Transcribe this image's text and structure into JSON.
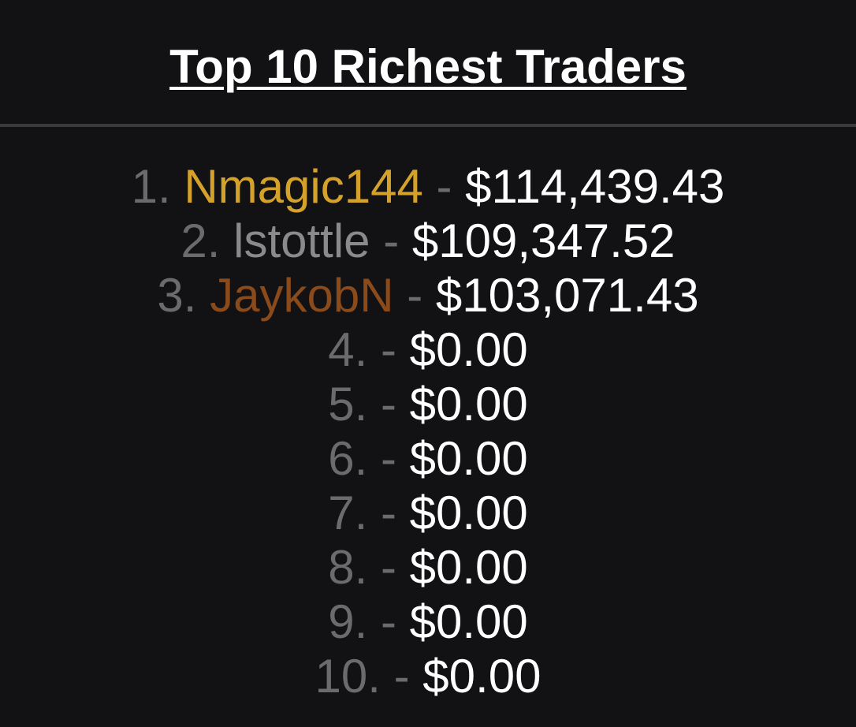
{
  "header": {
    "title": "Top 10 Richest Traders"
  },
  "colors": {
    "background": "#121214",
    "muted": "#6b6b6d",
    "gold": "#d4a22a",
    "silver": "#8a8a8c",
    "bronze": "#8a4a1a",
    "amount": "#ffffff"
  },
  "separator": "-",
  "leaderboard": [
    {
      "rank": "1.",
      "name": "Nmagic144",
      "amount": "$114,439.43",
      "color": "#d4a22a"
    },
    {
      "rank": "2.",
      "name": "lstottle",
      "amount": "$109,347.52",
      "color": "#8a8a8c"
    },
    {
      "rank": "3.",
      "name": "JaykobN",
      "amount": "$103,071.43",
      "color": "#8a4a1a"
    },
    {
      "rank": "4.",
      "name": "",
      "amount": "$0.00",
      "color": "#8a8a8c"
    },
    {
      "rank": "5.",
      "name": "",
      "amount": "$0.00",
      "color": "#8a8a8c"
    },
    {
      "rank": "6.",
      "name": "",
      "amount": "$0.00",
      "color": "#8a8a8c"
    },
    {
      "rank": "7.",
      "name": "",
      "amount": "$0.00",
      "color": "#8a8a8c"
    },
    {
      "rank": "8.",
      "name": "",
      "amount": "$0.00",
      "color": "#8a8a8c"
    },
    {
      "rank": "9.",
      "name": "",
      "amount": "$0.00",
      "color": "#8a8a8c"
    },
    {
      "rank": "10.",
      "name": "",
      "amount": "$0.00",
      "color": "#8a8a8c"
    }
  ]
}
